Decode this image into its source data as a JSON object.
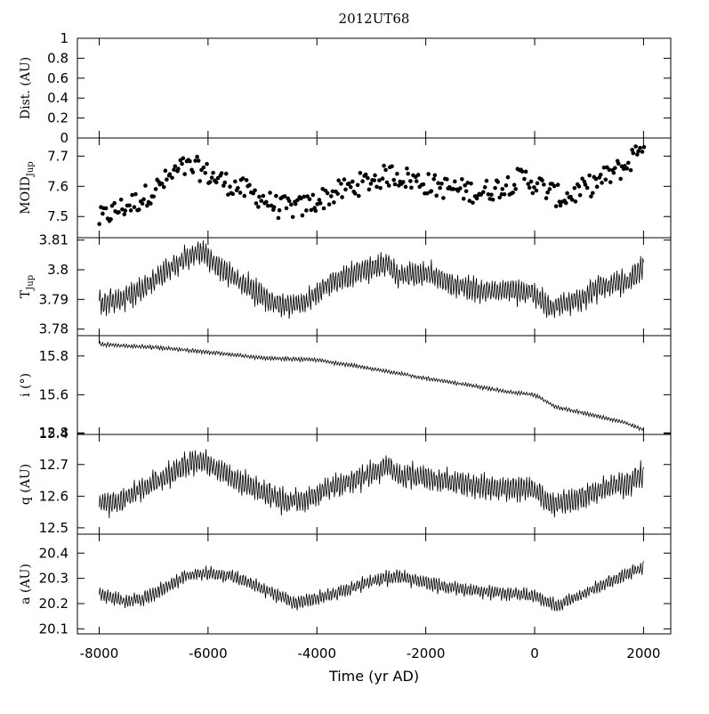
{
  "chart_data": {
    "type": "line",
    "title": "2012UT68",
    "xlabel": "Time (yr AD)",
    "xlim": [
      -8400,
      2500
    ],
    "x_ticks": [
      -8000,
      -6000,
      -4000,
      -2000,
      0,
      2000
    ],
    "panels": [
      {
        "id": "dist",
        "ylabel": "Dist. (AU)",
        "ylim": [
          0,
          1
        ],
        "y_ticks": [
          "1",
          "0.8",
          "0.6",
          "0.4",
          "0.2",
          "0"
        ],
        "y_tick_values": [
          1,
          0.8,
          0.6,
          0.4,
          0.2,
          0
        ],
        "series": []
      },
      {
        "id": "moid",
        "ylabel": "MOID",
        "ylabel_sub": "Jup",
        "ylim": [
          7.43,
          7.76
        ],
        "y_ticks": [
          "7.7",
          "7.6",
          "7.5"
        ],
        "y_tick_values": [
          7.7,
          7.6,
          7.5
        ],
        "style": "points",
        "base": [
          [
            -8000,
            7.49
          ],
          [
            -7700,
            7.52
          ],
          [
            -7300,
            7.55
          ],
          [
            -6900,
            7.6
          ],
          [
            -6500,
            7.66
          ],
          [
            -6200,
            7.66
          ],
          [
            -5900,
            7.63
          ],
          [
            -5500,
            7.6
          ],
          [
            -5100,
            7.57
          ],
          [
            -4700,
            7.53
          ],
          [
            -4300,
            7.53
          ],
          [
            -3900,
            7.56
          ],
          [
            -3500,
            7.59
          ],
          [
            -3000,
            7.62
          ],
          [
            -2600,
            7.64
          ],
          [
            -2200,
            7.62
          ],
          [
            -1800,
            7.6
          ],
          [
            -1400,
            7.59
          ],
          [
            -1000,
            7.58
          ],
          [
            -600,
            7.6
          ],
          [
            -200,
            7.63
          ],
          [
            100,
            7.6
          ],
          [
            500,
            7.56
          ],
          [
            900,
            7.59
          ],
          [
            1300,
            7.63
          ],
          [
            1700,
            7.67
          ],
          [
            2000,
            7.75
          ]
        ],
        "noise": 0.038,
        "n": 330
      },
      {
        "id": "tjup",
        "ylabel": "T",
        "ylabel_sub": "Jup",
        "ylim": [
          3.7778,
          3.8108
        ],
        "y_ticks": [
          "3.81",
          "3.8",
          "3.79",
          "3.78"
        ],
        "y_tick_values": [
          3.81,
          3.8,
          3.79,
          3.78
        ],
        "style": "line",
        "base": [
          [
            -8000,
            3.789
          ],
          [
            -7600,
            3.79
          ],
          [
            -7200,
            3.794
          ],
          [
            -6800,
            3.799
          ],
          [
            -6400,
            3.804
          ],
          [
            -6100,
            3.806
          ],
          [
            -5900,
            3.802
          ],
          [
            -5500,
            3.797
          ],
          [
            -5000,
            3.791
          ],
          [
            -4600,
            3.788
          ],
          [
            -4200,
            3.789
          ],
          [
            -3800,
            3.795
          ],
          [
            -3300,
            3.799
          ],
          [
            -2700,
            3.802
          ],
          [
            -2500,
            3.798
          ],
          [
            -2000,
            3.799
          ],
          [
            -1500,
            3.795
          ],
          [
            -1000,
            3.793
          ],
          [
            -500,
            3.793
          ],
          [
            0,
            3.792
          ],
          [
            300,
            3.787
          ],
          [
            700,
            3.789
          ],
          [
            1200,
            3.794
          ],
          [
            1700,
            3.796
          ],
          [
            2000,
            3.801
          ]
        ],
        "amp": 0.0045,
        "n": 760
      },
      {
        "id": "incl",
        "ylabel": "i (°)",
        "ylim": [
          15.395,
          15.905
        ],
        "y_ticks": [
          "15.8",
          "15.6",
          "15.4"
        ],
        "y_tick_values": [
          15.8,
          15.6,
          15.4
        ],
        "style": "line",
        "base": [
          [
            -8000,
            15.86
          ],
          [
            -7000,
            15.845
          ],
          [
            -6000,
            15.82
          ],
          [
            -5000,
            15.79
          ],
          [
            -4000,
            15.78
          ],
          [
            -3000,
            15.735
          ],
          [
            -2000,
            15.685
          ],
          [
            -1000,
            15.64
          ],
          [
            -500,
            15.615
          ],
          [
            0,
            15.6
          ],
          [
            400,
            15.535
          ],
          [
            1000,
            15.5
          ],
          [
            1600,
            15.46
          ],
          [
            2000,
            15.42
          ]
        ],
        "amp": 0.011,
        "n": 760
      },
      {
        "id": "q",
        "ylabel": "q (AU)",
        "ylim": [
          12.48,
          12.795
        ],
        "y_ticks": [
          "12.8",
          "12.7",
          "12.6",
          "12.5"
        ],
        "y_tick_values": [
          12.8,
          12.7,
          12.6,
          12.5
        ],
        "style": "line",
        "base": [
          [
            -8000,
            12.575
          ],
          [
            -7600,
            12.585
          ],
          [
            -7200,
            12.625
          ],
          [
            -6800,
            12.66
          ],
          [
            -6400,
            12.7
          ],
          [
            -6100,
            12.71
          ],
          [
            -5900,
            12.69
          ],
          [
            -5500,
            12.655
          ],
          [
            -5000,
            12.615
          ],
          [
            -4600,
            12.585
          ],
          [
            -4200,
            12.59
          ],
          [
            -3800,
            12.625
          ],
          [
            -3300,
            12.65
          ],
          [
            -2700,
            12.695
          ],
          [
            -2500,
            12.665
          ],
          [
            -2000,
            12.66
          ],
          [
            -1500,
            12.64
          ],
          [
            -1000,
            12.63
          ],
          [
            -500,
            12.625
          ],
          [
            0,
            12.62
          ],
          [
            300,
            12.575
          ],
          [
            700,
            12.585
          ],
          [
            1200,
            12.62
          ],
          [
            1700,
            12.64
          ],
          [
            2000,
            12.67
          ]
        ],
        "amp": 0.042,
        "n": 760
      },
      {
        "id": "a",
        "ylabel": "a (AU)",
        "ylim": [
          20.08,
          20.475
        ],
        "y_ticks": [
          "20.4",
          "20.3",
          "20.2",
          "20.1"
        ],
        "y_tick_values": [
          20.4,
          20.3,
          20.2,
          20.1
        ],
        "style": "line",
        "base": [
          [
            -8000,
            20.24
          ],
          [
            -7600,
            20.21
          ],
          [
            -7200,
            20.22
          ],
          [
            -6800,
            20.26
          ],
          [
            -6400,
            20.31
          ],
          [
            -6000,
            20.32
          ],
          [
            -5600,
            20.31
          ],
          [
            -5200,
            20.28
          ],
          [
            -4800,
            20.24
          ],
          [
            -4400,
            20.2
          ],
          [
            -4000,
            20.22
          ],
          [
            -3500,
            20.25
          ],
          [
            -3000,
            20.29
          ],
          [
            -2500,
            20.31
          ],
          [
            -2000,
            20.28
          ],
          [
            -1500,
            20.26
          ],
          [
            -1000,
            20.25
          ],
          [
            -500,
            20.24
          ],
          [
            0,
            20.23
          ],
          [
            400,
            20.19
          ],
          [
            800,
            20.23
          ],
          [
            1200,
            20.27
          ],
          [
            1600,
            20.31
          ],
          [
            2000,
            20.34
          ]
        ],
        "amp": 0.03,
        "n": 760
      }
    ]
  }
}
